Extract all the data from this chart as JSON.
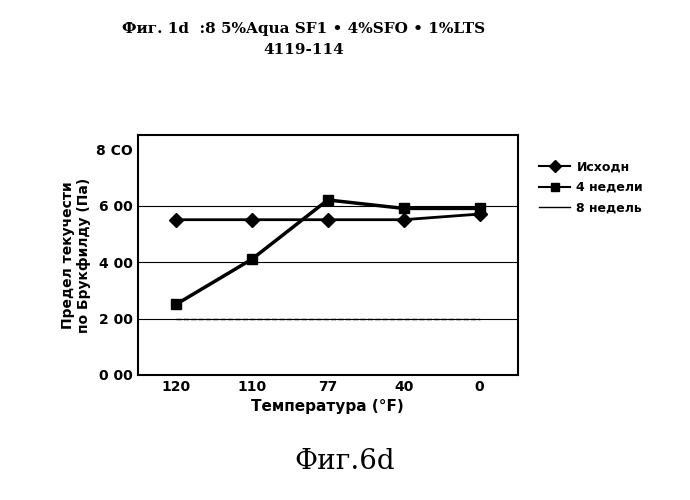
{
  "title_line1": "Фиг. 1d  :8 5%Aqua SF1 • 4%SFO • 1%LTS",
  "title_line2": "4119-114",
  "xlabel": "Температура (°F)",
  "ylabel": "Предел текучести\nпо Брукфилду (Па)",
  "bottom_label": "Фиг.6d",
  "x_categories": [
    "120",
    "110",
    "77",
    "40",
    "0"
  ],
  "x_positions": [
    0,
    1,
    2,
    3,
    4
  ],
  "series": [
    {
      "name": "Исходн",
      "y": [
        550,
        550,
        550,
        550,
        570
      ],
      "color": "#000000",
      "marker": "D",
      "linewidth": 2.0,
      "markersize": 7,
      "linestyle": "solid"
    },
    {
      "name": "4 недели",
      "y": [
        250,
        410,
        620,
        590,
        590
      ],
      "color": "#000000",
      "marker": "s",
      "linewidth": 2.5,
      "markersize": 7,
      "linestyle": "solid"
    },
    {
      "name": "8 недель",
      "y": [
        200,
        200,
        200,
        200,
        200
      ],
      "color": "#000000",
      "marker": "",
      "linewidth": 1.0,
      "markersize": 0,
      "linestyle": "dashed"
    }
  ],
  "ylim": [
    0,
    850
  ],
  "yticks": [
    0,
    200,
    400,
    600,
    800
  ],
  "ytick_labels": [
    "0 00",
    "2 00",
    "4 00",
    "6 00",
    "8 CO"
  ],
  "hlines": [
    200,
    400,
    600
  ],
  "background_color": "#ffffff"
}
